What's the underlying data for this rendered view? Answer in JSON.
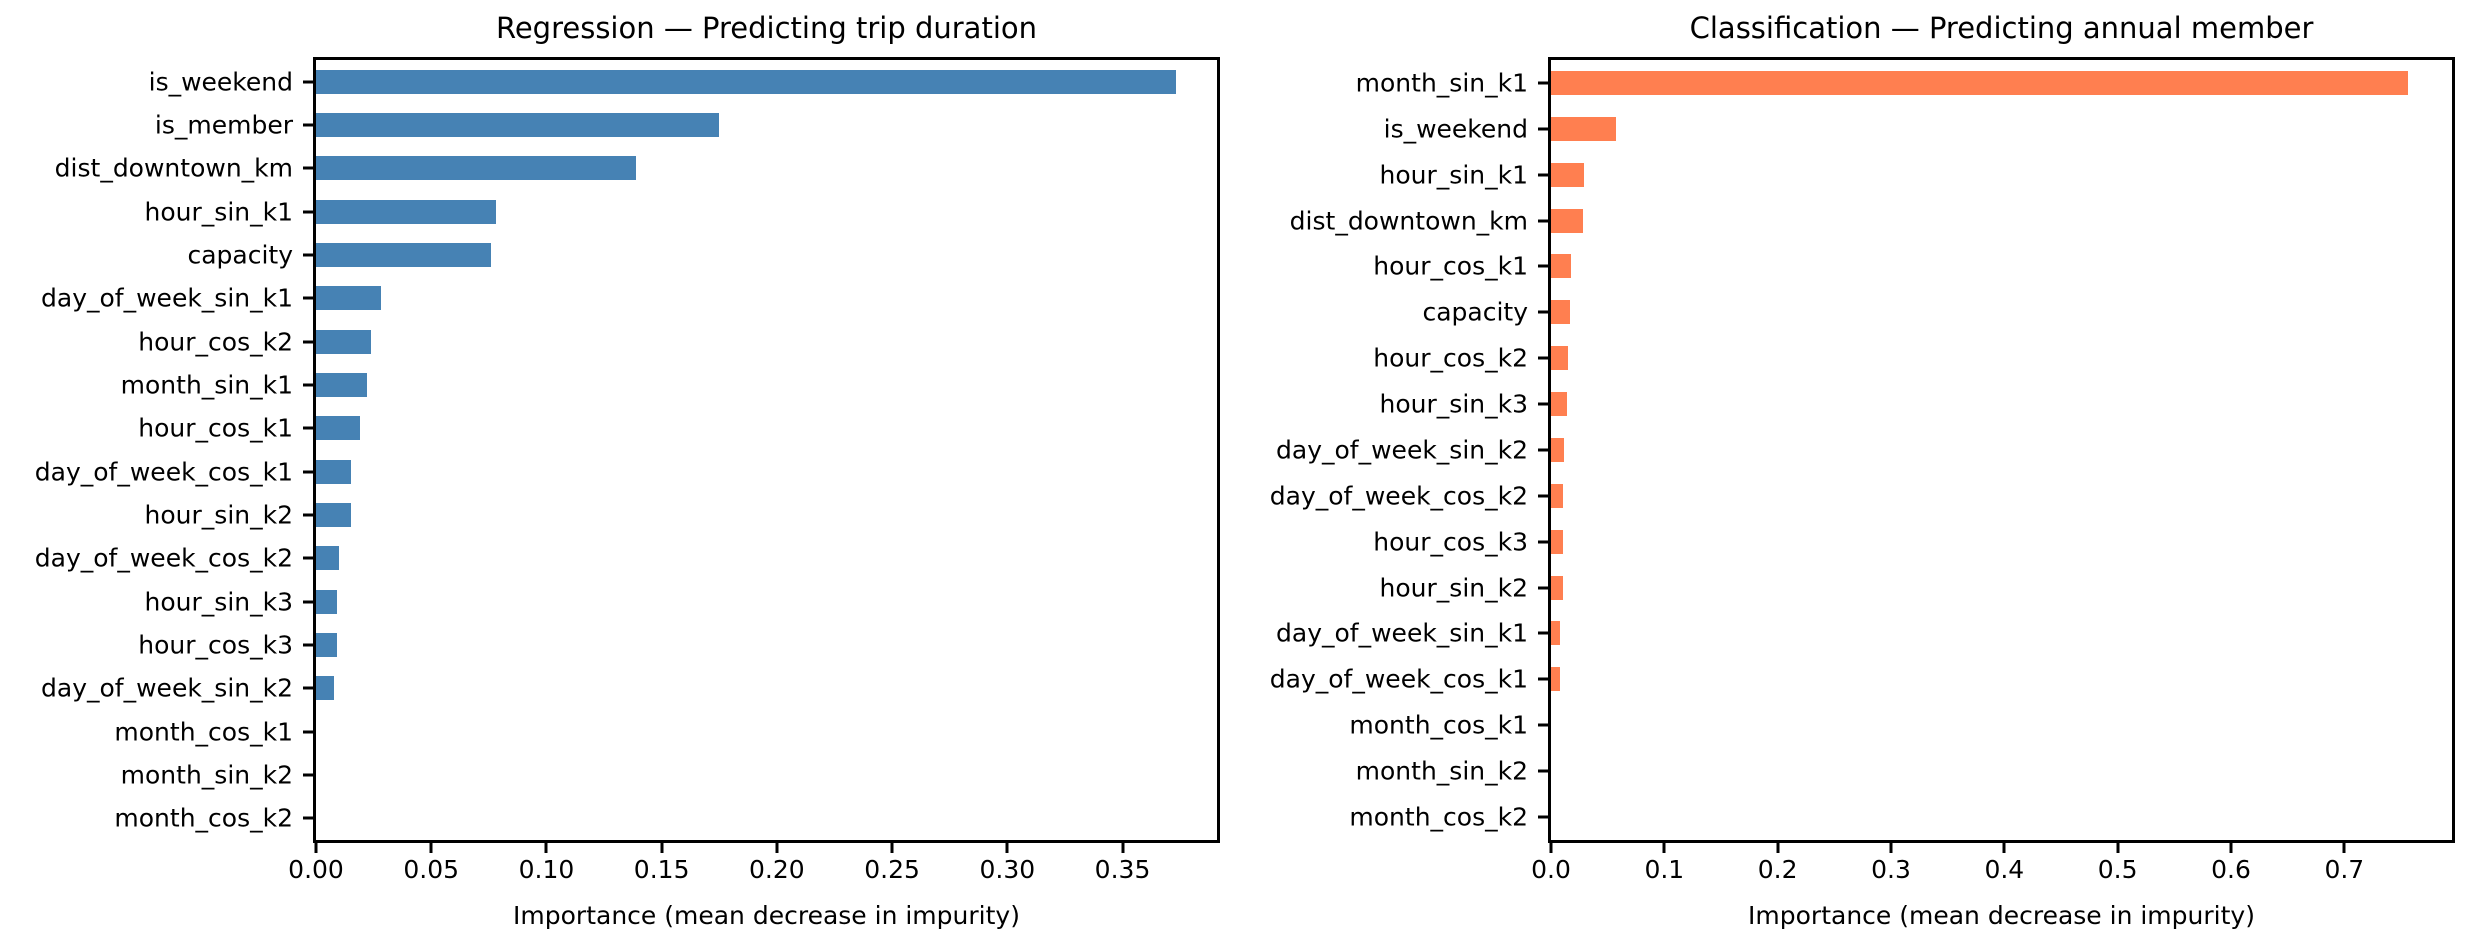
{
  "figure": {
    "background_color": "#ffffff",
    "text_color": "#000000"
  },
  "chart_data": [
    {
      "type": "bar",
      "orientation": "horizontal",
      "title": "Regression — Predicting trip duration",
      "xlabel": "Importance (mean decrease in impurity)",
      "ylabel": "",
      "bar_color": "#4682b4",
      "grid": false,
      "legend": "none",
      "xlim": [
        0,
        0.391
      ],
      "xticks": [
        0.0,
        0.05,
        0.1,
        0.15,
        0.2,
        0.25,
        0.3,
        0.35
      ],
      "xtick_labels": [
        "0.00",
        "0.05",
        "0.10",
        "0.15",
        "0.20",
        "0.25",
        "0.30",
        "0.35"
      ],
      "categories": [
        "is_weekend",
        "is_member",
        "dist_downtown_km",
        "hour_sin_k1",
        "capacity",
        "day_of_week_sin_k1",
        "hour_cos_k2",
        "month_sin_k1",
        "hour_cos_k1",
        "day_of_week_cos_k1",
        "hour_sin_k2",
        "day_of_week_cos_k2",
        "hour_sin_k3",
        "hour_cos_k3",
        "day_of_week_sin_k2",
        "month_cos_k1",
        "month_sin_k2",
        "month_cos_k2"
      ],
      "values": [
        0.373,
        0.175,
        0.139,
        0.078,
        0.076,
        0.028,
        0.024,
        0.022,
        0.019,
        0.015,
        0.015,
        0.01,
        0.009,
        0.009,
        0.008,
        0.0,
        0.0,
        0.0
      ]
    },
    {
      "type": "bar",
      "orientation": "horizontal",
      "title": "Classification — Predicting annual member",
      "xlabel": "Importance (mean decrease in impurity)",
      "ylabel": "",
      "bar_color": "#ff7f50",
      "grid": false,
      "legend": "none",
      "xlim": [
        0,
        0.795
      ],
      "xticks": [
        0.0,
        0.1,
        0.2,
        0.3,
        0.4,
        0.5,
        0.6,
        0.7
      ],
      "xtick_labels": [
        "0.0",
        "0.1",
        "0.2",
        "0.3",
        "0.4",
        "0.5",
        "0.6",
        "0.7"
      ],
      "categories": [
        "month_sin_k1",
        "is_weekend",
        "hour_sin_k1",
        "dist_downtown_km",
        "hour_cos_k1",
        "capacity",
        "hour_cos_k2",
        "hour_sin_k3",
        "day_of_week_sin_k2",
        "day_of_week_cos_k2",
        "hour_cos_k3",
        "hour_sin_k2",
        "day_of_week_sin_k1",
        "day_of_week_cos_k1",
        "month_cos_k1",
        "month_sin_k2",
        "month_cos_k2"
      ],
      "values": [
        0.756,
        0.057,
        0.029,
        0.028,
        0.018,
        0.017,
        0.015,
        0.014,
        0.0115,
        0.011,
        0.011,
        0.011,
        0.008,
        0.008,
        0.0,
        0.0,
        0.0
      ]
    }
  ]
}
